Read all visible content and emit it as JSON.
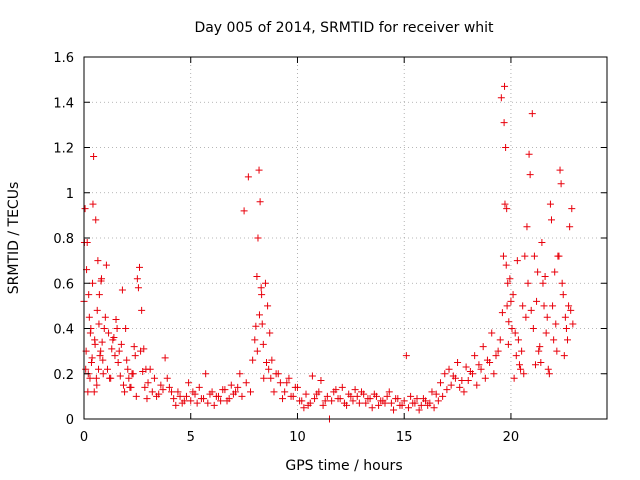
{
  "chart_data": {
    "type": "scatter",
    "title": "Day 005 of 2014, SRMTID for receiver whit",
    "xlabel": "GPS time / hours",
    "ylabel": "SRMTID / TECUs",
    "xlim": [
      0,
      24.5
    ],
    "ylim": [
      0,
      1.6
    ],
    "xticks": [
      0,
      5,
      10,
      15,
      20
    ],
    "xtick_labels": [
      "0",
      "5",
      "10",
      "15",
      "20"
    ],
    "yticks": [
      0,
      0.2,
      0.4,
      0.6,
      0.8,
      1,
      1.2,
      1.4,
      1.6
    ],
    "ytick_labels": [
      "0",
      "0.2",
      "0.4",
      "0.6",
      "0.8",
      "1",
      "1.2",
      "1.4",
      "1.6"
    ],
    "grid": true,
    "marker": "plus",
    "marker_color": "#e8000b",
    "series": [
      {
        "name": "SRMTID",
        "x": [
          0.0,
          0.05,
          0.1,
          0.15,
          0.2,
          0.25,
          0.3,
          0.35,
          0.4,
          0.45,
          0.5,
          0.55,
          0.6,
          0.65,
          0.7,
          0.75,
          0.8,
          0.85,
          0.9,
          1.0,
          1.1,
          1.2,
          1.3,
          1.4,
          1.5,
          1.6,
          1.7,
          1.8,
          1.9,
          2.0,
          2.1,
          2.2,
          2.3,
          2.4,
          2.5,
          2.6,
          2.7,
          2.8,
          2.9,
          3.0,
          3.2,
          3.4,
          3.6,
          3.8,
          4.0,
          4.2,
          4.4,
          4.6,
          4.8,
          5.0,
          5.2,
          5.4,
          5.6,
          5.8,
          6.0,
          6.2,
          6.4,
          6.6,
          6.8,
          7.0,
          7.2,
          7.4,
          7.6,
          7.8,
          7.9,
          8.0,
          8.05,
          8.1,
          8.15,
          8.2,
          8.25,
          8.3,
          8.35,
          8.4,
          8.5,
          8.6,
          8.7,
          8.8,
          9.0,
          9.2,
          9.4,
          9.6,
          9.8,
          10.0,
          10.2,
          10.4,
          10.6,
          10.8,
          11.0,
          11.2,
          11.4,
          11.6,
          11.8,
          12.0,
          12.2,
          12.4,
          12.6,
          12.8,
          13.0,
          13.2,
          13.4,
          13.6,
          13.8,
          14.0,
          14.2,
          14.4,
          14.6,
          14.8,
          15.0,
          15.2,
          15.4,
          15.6,
          15.8,
          16.0,
          16.2,
          16.4,
          16.6,
          16.8,
          17.0,
          17.2,
          17.4,
          17.6,
          17.8,
          18.0,
          18.2,
          18.4,
          18.6,
          18.8,
          19.0,
          19.2,
          19.4,
          19.5,
          19.6,
          19.65,
          19.7,
          19.75,
          19.8,
          19.85,
          19.9,
          20.0,
          20.1,
          20.2,
          20.3,
          20.4,
          20.5,
          20.6,
          20.7,
          20.8,
          20.9,
          21.0,
          21.1,
          21.2,
          21.3,
          21.4,
          21.5,
          21.6,
          21.7,
          21.8,
          21.9,
          22.0,
          22.1,
          22.2,
          22.3,
          22.4,
          22.5,
          22.6,
          22.7,
          22.8,
          22.9,
          0.02,
          0.08,
          0.12,
          0.18,
          0.22,
          0.28,
          0.32,
          0.38,
          0.42,
          0.48,
          0.52,
          0.58,
          0.62,
          0.68,
          0.72,
          0.78,
          0.82,
          0.88,
          0.95,
          1.05,
          1.15,
          1.25,
          1.35,
          1.45,
          1.55,
          1.65,
          1.75,
          1.85,
          1.95,
          2.05,
          2.15,
          2.25,
          2.35,
          2.45,
          2.55,
          2.65,
          2.75,
          2.85,
          2.95,
          3.1,
          3.3,
          3.5,
          3.7,
          3.9,
          4.1,
          4.3,
          4.5,
          4.7,
          4.9,
          5.1,
          5.3,
          5.5,
          5.7,
          5.9,
          6.1,
          6.3,
          6.5,
          6.7,
          6.9,
          7.1,
          7.3,
          7.5,
          7.7,
          8.12,
          8.22,
          8.32,
          8.42,
          8.55,
          8.65,
          8.75,
          8.9,
          9.1,
          9.3,
          9.5,
          9.7,
          9.9,
          10.1,
          10.3,
          10.5,
          10.7,
          10.9,
          11.1,
          11.3,
          11.5,
          11.7,
          11.9,
          12.1,
          12.3,
          12.5,
          12.7,
          12.9,
          13.1,
          13.3,
          13.5,
          13.7,
          13.9,
          14.1,
          14.3,
          14.5,
          14.7,
          14.9,
          15.1,
          15.3,
          15.5,
          15.7,
          15.9,
          16.1,
          16.3,
          16.5,
          16.7,
          16.9,
          17.1,
          17.3,
          17.5,
          17.7,
          17.9,
          18.1,
          18.3,
          18.5,
          18.7,
          18.9,
          19.1,
          19.3,
          19.55,
          19.68,
          19.72,
          19.78,
          19.82,
          19.88,
          19.95,
          20.05,
          20.15,
          20.25,
          20.35,
          20.45,
          20.55,
          20.65,
          20.75,
          20.85,
          20.95,
          21.05,
          21.15,
          21.25,
          21.35,
          21.45,
          21.55,
          21.65,
          21.75,
          21.85,
          21.95,
          22.05,
          22.15,
          22.25,
          22.35,
          22.45,
          22.55,
          22.65,
          22.75,
          22.85
        ],
        "y": [
          0.52,
          0.93,
          0.3,
          0.78,
          0.2,
          0.45,
          0.38,
          0.25,
          0.6,
          1.16,
          0.35,
          0.88,
          0.15,
          0.7,
          0.42,
          0.28,
          0.61,
          0.34,
          0.2,
          0.45,
          0.22,
          0.18,
          0.31,
          0.36,
          0.44,
          0.25,
          0.19,
          0.57,
          0.12,
          0.26,
          0.18,
          0.14,
          0.2,
          0.28,
          0.62,
          0.67,
          0.48,
          0.31,
          0.22,
          0.16,
          0.12,
          0.1,
          0.15,
          0.27,
          0.14,
          0.09,
          0.12,
          0.07,
          0.1,
          0.08,
          0.11,
          0.14,
          0.09,
          0.07,
          0.12,
          0.1,
          0.08,
          0.13,
          0.09,
          0.11,
          0.14,
          0.1,
          0.16,
          0.12,
          0.26,
          0.35,
          0.41,
          0.63,
          0.8,
          1.1,
          0.96,
          0.58,
          0.42,
          0.33,
          0.6,
          0.5,
          0.38,
          0.26,
          0.2,
          0.16,
          0.12,
          0.18,
          0.1,
          0.14,
          0.08,
          0.11,
          0.07,
          0.09,
          0.12,
          0.06,
          0.1,
          0.08,
          0.13,
          0.09,
          0.07,
          0.11,
          0.08,
          0.1,
          0.12,
          0.07,
          0.09,
          0.11,
          0.06,
          0.08,
          0.1,
          0.07,
          0.09,
          0.06,
          0.08,
          0.05,
          0.07,
          0.09,
          0.06,
          0.08,
          0.07,
          0.05,
          0.08,
          0.1,
          0.13,
          0.15,
          0.18,
          0.14,
          0.12,
          0.17,
          0.2,
          0.15,
          0.22,
          0.18,
          0.25,
          0.2,
          0.3,
          0.35,
          0.47,
          0.72,
          1.47,
          1.2,
          0.93,
          0.6,
          0.43,
          0.52,
          0.55,
          0.38,
          0.7,
          0.24,
          0.3,
          0.2,
          0.45,
          0.6,
          1.08,
          1.35,
          0.72,
          0.52,
          0.3,
          0.25,
          0.6,
          0.63,
          0.45,
          0.2,
          0.88,
          0.35,
          0.42,
          0.72,
          1.1,
          0.6,
          0.28,
          0.4,
          0.5,
          0.48,
          0.42,
          0.78,
          0.22,
          0.66,
          0.12,
          0.55,
          0.18,
          0.4,
          0.27,
          0.95,
          0.12,
          0.33,
          0.18,
          0.48,
          0.22,
          0.55,
          0.3,
          0.62,
          0.26,
          0.4,
          0.68,
          0.38,
          0.18,
          0.35,
          0.28,
          0.4,
          0.3,
          0.33,
          0.15,
          0.4,
          0.22,
          0.14,
          0.2,
          0.32,
          0.1,
          0.58,
          0.3,
          0.21,
          0.14,
          0.09,
          0.22,
          0.18,
          0.11,
          0.13,
          0.18,
          0.12,
          0.06,
          0.1,
          0.08,
          0.16,
          0.12,
          0.07,
          0.09,
          0.2,
          0.11,
          0.06,
          0.1,
          0.13,
          0.08,
          0.15,
          0.12,
          0.2,
          0.92,
          1.07,
          0.3,
          0.46,
          0.55,
          0.18,
          0.25,
          0.22,
          0.18,
          0.12,
          0.2,
          0.09,
          0.16,
          0.1,
          0.14,
          0.08,
          0.05,
          0.06,
          0.19,
          0.11,
          0.17,
          0.08,
          0.0,
          0.12,
          0.09,
          0.14,
          0.06,
          0.1,
          0.13,
          0.07,
          0.11,
          0.09,
          0.05,
          0.1,
          0.08,
          0.07,
          0.12,
          0.04,
          0.09,
          0.06,
          0.28,
          0.1,
          0.07,
          0.04,
          0.09,
          0.06,
          0.12,
          0.11,
          0.16,
          0.2,
          0.22,
          0.19,
          0.25,
          0.17,
          0.23,
          0.21,
          0.28,
          0.24,
          0.32,
          0.26,
          0.38,
          0.28,
          1.42,
          1.31,
          0.95,
          0.68,
          0.5,
          0.33,
          0.62,
          0.4,
          0.18,
          0.28,
          0.35,
          0.22,
          0.5,
          0.72,
          0.85,
          1.17,
          0.48,
          0.4,
          0.24,
          0.65,
          0.32,
          0.78,
          0.5,
          0.38,
          0.22,
          0.95,
          0.5,
          0.65,
          0.3,
          0.72,
          1.04,
          0.55,
          0.45,
          0.35,
          0.85,
          0.93
        ]
      }
    ]
  }
}
